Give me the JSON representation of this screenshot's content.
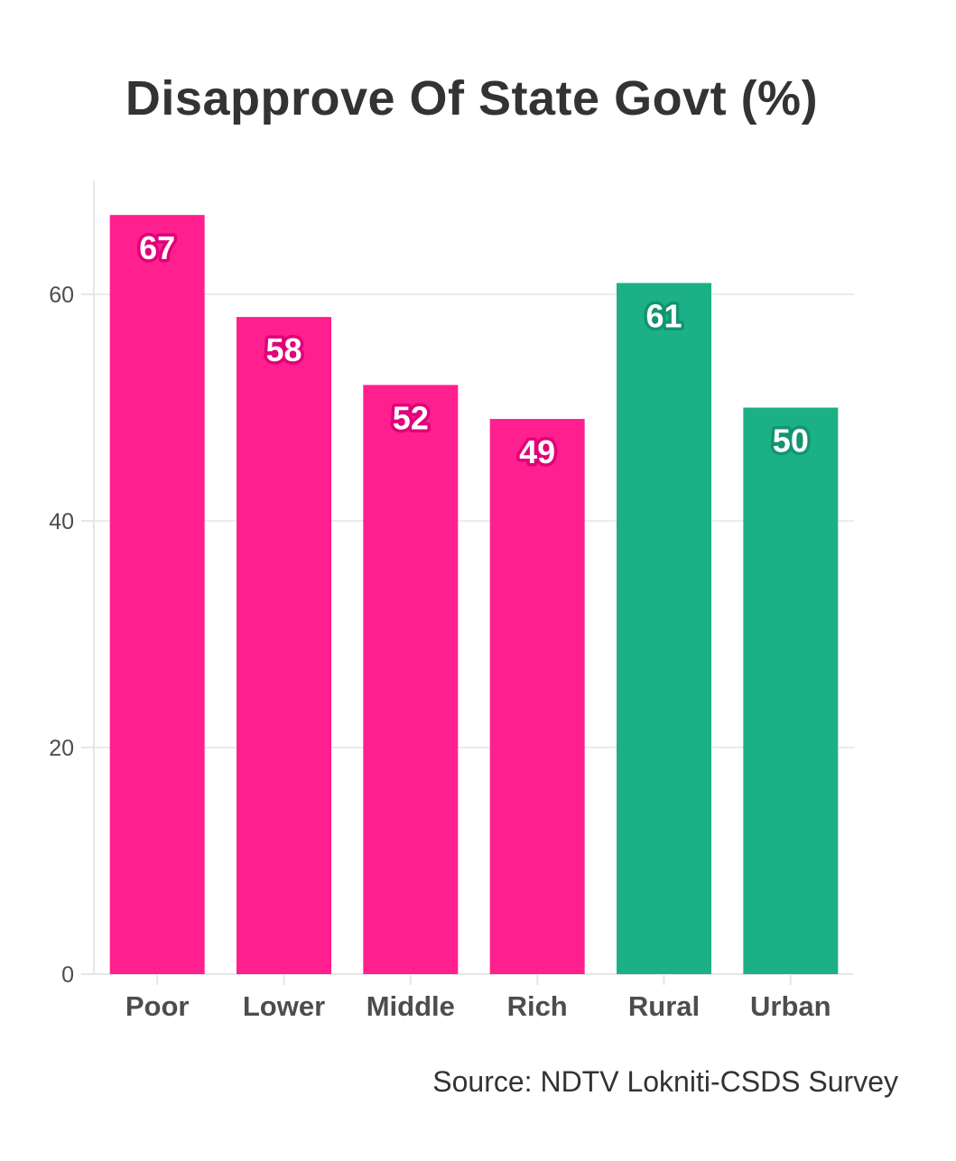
{
  "chart_data": {
    "type": "bar",
    "title": "Disapprove Of State Govt (%)",
    "xlabel": "",
    "ylabel": "",
    "categories": [
      "Poor",
      "Lower",
      "Middle",
      "Rich",
      "Rural",
      "Urban"
    ],
    "values": [
      67,
      58,
      52,
      49,
      61,
      50
    ],
    "bar_colors": [
      "#ff1f8e",
      "#ff1f8e",
      "#ff1f8e",
      "#ff1f8e",
      "#1cb087",
      "#1cb087"
    ],
    "data_labels": [
      "67",
      "58",
      "52",
      "49",
      "61",
      "50"
    ],
    "ylim": [
      0,
      70
    ],
    "yticks": [
      0,
      20,
      40,
      60
    ],
    "ytick_labels": [
      "0",
      "20",
      "40",
      "60"
    ],
    "grid": true,
    "legend": "none"
  },
  "source": "Source: NDTV Lokniti-CSDS Survey"
}
